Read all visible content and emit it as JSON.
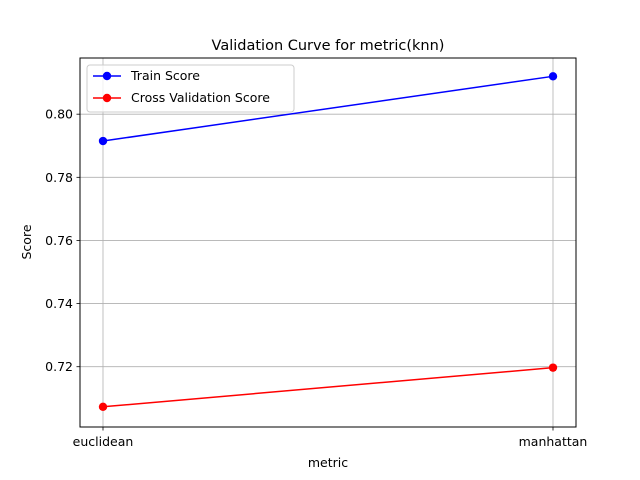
{
  "chart_data": {
    "type": "line",
    "title": "Validation Curve for metric(knn)",
    "xlabel": "metric",
    "ylabel": "Score",
    "categories": [
      "euclidean",
      "manhattan"
    ],
    "ylim": [
      0.7009,
      0.8178
    ],
    "yticks": [
      0.72,
      0.74,
      0.76,
      0.78,
      0.8
    ],
    "ytick_labels": [
      "0.72",
      "0.74",
      "0.76",
      "0.78",
      "0.80"
    ],
    "grid": true,
    "legend_position": "top-left",
    "series": [
      {
        "name": "Train Score",
        "values": [
          0.7915,
          0.812
        ],
        "color": "#0000ff",
        "marker": "circle"
      },
      {
        "name": "Cross Validation Score",
        "values": [
          0.7073,
          0.7197
        ],
        "color": "#ff0000",
        "marker": "circle"
      }
    ]
  }
}
